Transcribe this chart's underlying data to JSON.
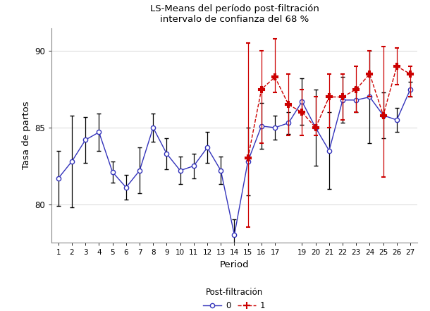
{
  "title_line1": "LS-Means del período post-filtración",
  "title_line2": "intervalo de confianza del 68 %",
  "xlabel": "Period",
  "ylabel": "Tasa de partos",
  "legend_title": "Post-filtración",
  "xlim": [
    0.5,
    27.5
  ],
  "ylim": [
    77.5,
    91.5
  ],
  "yticks": [
    80,
    85,
    90
  ],
  "background_color": "#ffffff",
  "grid_color": "#d0d0d0",
  "blue_x": [
    1,
    2,
    3,
    4,
    5,
    6,
    7,
    8,
    9,
    10,
    11,
    12,
    13,
    14,
    15,
    16,
    17,
    18,
    19,
    20,
    21,
    22,
    23,
    24,
    25,
    26,
    27
  ],
  "blue_y": [
    81.7,
    82.8,
    84.2,
    84.7,
    82.1,
    81.1,
    82.2,
    85.0,
    83.3,
    82.2,
    82.5,
    83.7,
    82.2,
    78.0,
    82.8,
    85.1,
    85.0,
    85.3,
    86.7,
    85.0,
    83.5,
    86.8,
    86.8,
    87.0,
    85.8,
    85.5,
    87.5
  ],
  "blue_err_lo": [
    1.8,
    3.0,
    1.5,
    1.2,
    0.7,
    0.8,
    1.5,
    0.9,
    1.0,
    0.9,
    0.8,
    1.0,
    0.9,
    1.0,
    2.2,
    1.5,
    0.8,
    0.7,
    1.5,
    2.5,
    2.5,
    1.5,
    0.8,
    3.0,
    1.5,
    0.8,
    0.5
  ],
  "blue_err_hi": [
    1.8,
    3.0,
    1.5,
    1.2,
    0.7,
    0.8,
    1.5,
    0.9,
    1.0,
    0.9,
    0.8,
    1.0,
    0.9,
    1.0,
    2.2,
    1.5,
    0.8,
    0.7,
    1.5,
    2.5,
    2.5,
    1.5,
    0.8,
    3.0,
    1.5,
    0.8,
    0.5
  ],
  "red_x": [
    15,
    16,
    17,
    18,
    19,
    20,
    21,
    22,
    23,
    24,
    25,
    26,
    27
  ],
  "red_y": [
    83.0,
    87.5,
    88.3,
    86.5,
    86.0,
    85.0,
    87.0,
    87.0,
    87.5,
    88.5,
    85.8,
    89.0,
    88.5
  ],
  "red_err_lo": [
    4.5,
    3.5,
    1.0,
    2.0,
    1.5,
    0.5,
    2.0,
    1.5,
    1.5,
    1.5,
    4.0,
    1.2,
    1.5
  ],
  "red_err_hi": [
    7.5,
    2.5,
    2.5,
    2.0,
    1.5,
    2.0,
    1.5,
    1.5,
    1.5,
    1.5,
    4.5,
    1.2,
    0.5
  ],
  "blue_color": "#3333bb",
  "blue_err_color": "#000000",
  "red_color": "#cc0000",
  "xtick_labels": [
    "1",
    "2",
    "3",
    "4",
    "5",
    "6",
    "7",
    "8",
    "9",
    "10",
    "11",
    "12",
    "13",
    "14",
    "15",
    "16",
    "17",
    "19",
    "20",
    "21",
    "22",
    "23",
    "24",
    "25",
    "26",
    "27"
  ],
  "xtick_positions": [
    1,
    2,
    3,
    4,
    5,
    6,
    7,
    8,
    9,
    10,
    11,
    12,
    13,
    14,
    15,
    16,
    17,
    19,
    20,
    21,
    22,
    23,
    24,
    25,
    26,
    27
  ]
}
